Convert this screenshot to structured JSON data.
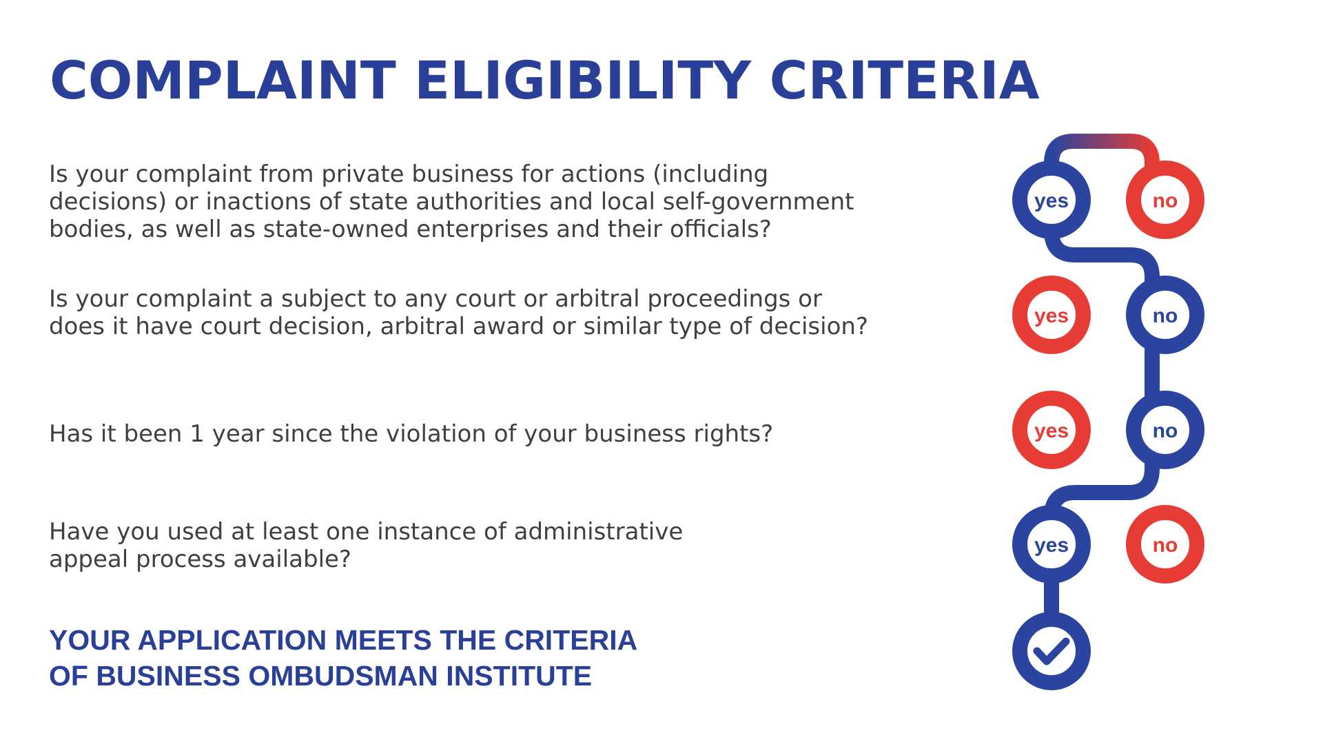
{
  "title": "COMPLAINT ELIGIBILITY CRITERIA",
  "questions": [
    {
      "text": "Is your complaint from private business for actions (including\ndecisions) or inactions of state authorities and local self-government\nbodies, as well as state-owned enterprises and their officials?",
      "yes": "yes",
      "no": "no"
    },
    {
      "text": "Is your complaint a subject to any court or arbitral proceedings or\ndoes it have court decision, arbitral award or similar type of decision?",
      "yes": "yes",
      "no": "no"
    },
    {
      "text": "Has it been 1 year since the violation of your business rights?",
      "yes": "yes",
      "no": "no"
    },
    {
      "text": "Have you used at least one instance of administrative\nappeal process available?",
      "yes": "yes",
      "no": "no"
    }
  ],
  "result": "YOUR APPLICATION MEETS THE CRITERIA\nOF BUSINESS OMBUDSMAN INSTITUTE",
  "colors": {
    "pass": "#2a44a0",
    "fail": "#e63c35",
    "text": "#3f3f41",
    "title": "#2a3f97"
  },
  "icons": {
    "final": "checkmark-icon"
  }
}
